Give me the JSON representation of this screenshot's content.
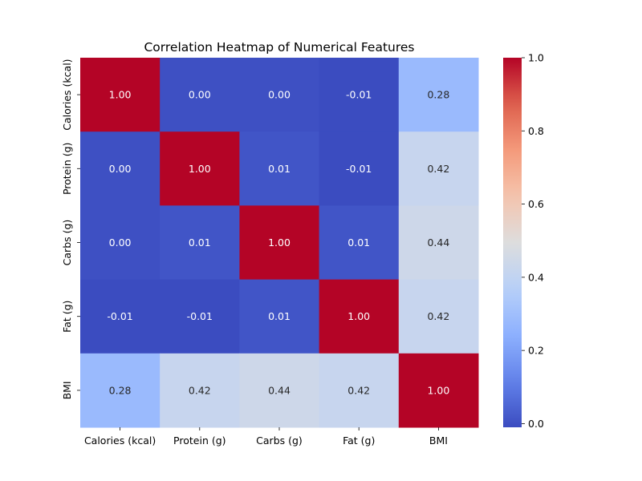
{
  "chart_data": {
    "type": "heatmap",
    "title": "Correlation Heatmap of Numerical Features",
    "xlabel": "",
    "ylabel": "",
    "x_labels": [
      "Calories (kcal)",
      "Protein (g)",
      "Carbs (g)",
      "Fat (g)",
      "BMI"
    ],
    "y_labels": [
      "Calories (kcal)",
      "Protein (g)",
      "Carbs (g)",
      "Fat (g)",
      "BMI"
    ],
    "values": [
      [
        1.0,
        0.0,
        0.0,
        -0.01,
        0.28
      ],
      [
        0.0,
        1.0,
        0.01,
        -0.01,
        0.42
      ],
      [
        0.0,
        0.01,
        1.0,
        0.01,
        0.44
      ],
      [
        -0.01,
        -0.01,
        0.01,
        1.0,
        0.42
      ],
      [
        0.28,
        0.42,
        0.44,
        0.42,
        1.0
      ]
    ],
    "annotations": [
      [
        "1.00",
        "0.00",
        "0.00",
        "-0.01",
        "0.28"
      ],
      [
        "0.00",
        "1.00",
        "0.01",
        "-0.01",
        "0.42"
      ],
      [
        "0.00",
        "0.01",
        "1.00",
        "0.01",
        "0.44"
      ],
      [
        "-0.01",
        "-0.01",
        "0.01",
        "1.00",
        "0.42"
      ],
      [
        "0.28",
        "0.42",
        "0.44",
        "0.42",
        "1.00"
      ]
    ],
    "colormap": "coolwarm",
    "colorbar": {
      "range": [
        -0.01,
        1.0
      ],
      "ticks": [
        0.0,
        0.2,
        0.4,
        0.6,
        0.8,
        1.0
      ],
      "tick_labels": [
        "0.0",
        "0.2",
        "0.4",
        "0.6",
        "0.8",
        "1.0"
      ],
      "placement": "right"
    },
    "grid": false
  }
}
